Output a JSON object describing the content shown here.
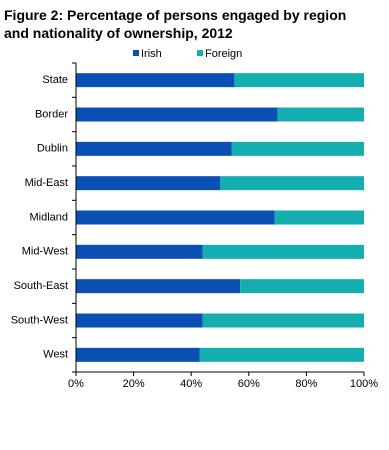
{
  "chart_data": {
    "type": "stacked_bar_horizontal",
    "title": [
      "Figure 2: Percentage of persons  engaged by region",
      "and nationality of ownership, 2012"
    ],
    "categories": [
      "State",
      "Border",
      "Dublin",
      "Mid-East",
      "Midland",
      "Mid-West",
      "South-East",
      "South-West",
      "West"
    ],
    "series": [
      {
        "name": "Irish",
        "color": "#0a4fb4",
        "values": [
          55,
          70,
          54,
          50,
          69,
          44,
          57,
          44,
          43
        ]
      },
      {
        "name": "Foreign",
        "color": "#14aeb0",
        "values": [
          45,
          30,
          46,
          50,
          31,
          56,
          43,
          56,
          57
        ]
      }
    ],
    "xlim": [
      0,
      100
    ],
    "xticks": [
      {
        "value": 0,
        "label": "0%"
      },
      {
        "value": 20,
        "label": "20%"
      },
      {
        "value": 40,
        "label": "40%"
      },
      {
        "value": 60,
        "label": "60%"
      },
      {
        "value": 80,
        "label": "80%"
      },
      {
        "value": 100,
        "label": "100%"
      }
    ],
    "legend": "top",
    "grid": false
  }
}
